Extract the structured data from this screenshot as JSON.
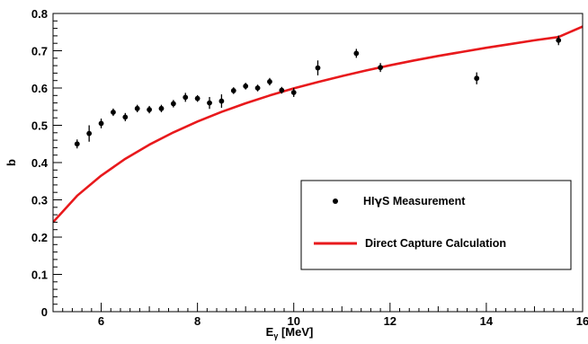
{
  "chart_data": {
    "type": "scatter",
    "title": "",
    "xlabel": "E",
    "xlabel_sub": "γ",
    "xlabel_unit": " [MeV]",
    "ylabel": "b",
    "xlim": [
      5,
      16
    ],
    "ylim": [
      0,
      0.8
    ],
    "xticks": [
      6,
      8,
      10,
      12,
      14,
      16
    ],
    "yticks": [
      0,
      0.1,
      0.2,
      0.3,
      0.4,
      0.5,
      0.6,
      0.7,
      0.8
    ],
    "ytick_labels": [
      "0",
      "0.1",
      "0.2",
      "0.3",
      "0.4",
      "0.5",
      "0.6",
      "0.7",
      "0.8"
    ],
    "grid": false,
    "legend_placement": "bottom-right",
    "series": [
      {
        "name_prefix": "HI",
        "name_greek": "γ",
        "name_suffix": "S Measurement",
        "kind": "points-with-errors",
        "color": "#000000",
        "x": [
          5.5,
          5.75,
          6.0,
          6.25,
          6.5,
          6.75,
          7.0,
          7.25,
          7.5,
          7.75,
          8.0,
          8.25,
          8.5,
          8.75,
          9.0,
          9.25,
          9.5,
          9.75,
          10.0,
          10.5,
          11.3,
          11.8,
          13.8,
          15.5
        ],
        "y": [
          0.45,
          0.478,
          0.505,
          0.535,
          0.522,
          0.545,
          0.542,
          0.545,
          0.558,
          0.575,
          0.572,
          0.56,
          0.565,
          0.593,
          0.605,
          0.6,
          0.617,
          0.594,
          0.588,
          0.654,
          0.693,
          0.655,
          0.626,
          0.728
        ],
        "yerr": [
          0.012,
          0.022,
          0.013,
          0.01,
          0.011,
          0.01,
          0.01,
          0.01,
          0.01,
          0.012,
          0.009,
          0.016,
          0.018,
          0.009,
          0.009,
          0.009,
          0.01,
          0.009,
          0.012,
          0.02,
          0.012,
          0.012,
          0.016,
          0.013
        ]
      },
      {
        "name": "Direct Capture Calculation",
        "kind": "curve",
        "color": "#e8191c",
        "x": [
          5.0,
          5.5,
          6.0,
          6.5,
          7.0,
          7.5,
          8.0,
          8.5,
          9.0,
          9.5,
          10.0,
          10.5,
          11.0,
          11.5,
          12.0,
          12.5,
          13.0,
          13.5,
          14.0,
          14.5,
          15.0,
          15.5,
          16.0
        ],
        "y": [
          0.24,
          0.311,
          0.365,
          0.41,
          0.448,
          0.481,
          0.51,
          0.536,
          0.559,
          0.58,
          0.599,
          0.616,
          0.632,
          0.647,
          0.661,
          0.674,
          0.686,
          0.697,
          0.708,
          0.718,
          0.728,
          0.737,
          0.765
        ]
      }
    ]
  }
}
